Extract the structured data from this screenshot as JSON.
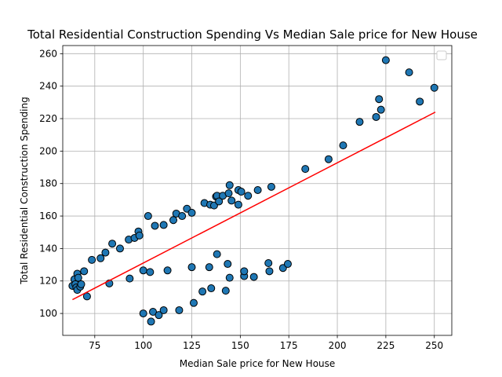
{
  "chart_data": {
    "type": "scatter",
    "title": "Total Residential Construction Spending Vs Median Sale price for New House",
    "xlabel": "Median Sale price for New House",
    "ylabel": "Total Residential Construction Spending",
    "xlim": [
      58.5,
      259
    ],
    "ylim": [
      86.5,
      265
    ],
    "xticks": [
      75,
      100,
      125,
      150,
      175,
      200,
      225,
      250
    ],
    "yticks": [
      100,
      120,
      140,
      160,
      180,
      200,
      220,
      240,
      260
    ],
    "grid": true,
    "legend": "top-right (empty)",
    "colors": {
      "points": "#1f77b4",
      "point_edge": "#000000",
      "fit_line": "#ff0000"
    },
    "points": [
      [
        63.5,
        117.0
      ],
      [
        64.5,
        121.0
      ],
      [
        65.0,
        118.0
      ],
      [
        65.5,
        116.0
      ],
      [
        66.0,
        114.5
      ],
      [
        66.0,
        124.5
      ],
      [
        66.5,
        122.0
      ],
      [
        67.5,
        116.5
      ],
      [
        68.0,
        118.0
      ],
      [
        69.5,
        126.0
      ],
      [
        71.0,
        110.5
      ],
      [
        73.5,
        133.0
      ],
      [
        78.0,
        134.0
      ],
      [
        80.5,
        137.5
      ],
      [
        82.5,
        118.5
      ],
      [
        84.0,
        143.0
      ],
      [
        88.0,
        140.0
      ],
      [
        92.5,
        145.5
      ],
      [
        93.0,
        121.5
      ],
      [
        95.5,
        146.5
      ],
      [
        97.5,
        150.5
      ],
      [
        98.0,
        148.0
      ],
      [
        100.0,
        126.5
      ],
      [
        100.0,
        100.0
      ],
      [
        102.5,
        160.0
      ],
      [
        103.5,
        125.5
      ],
      [
        104.0,
        95.0
      ],
      [
        105.0,
        101.0
      ],
      [
        106.0,
        154.0
      ],
      [
        108.0,
        99.0
      ],
      [
        110.5,
        102.0
      ],
      [
        110.5,
        154.5
      ],
      [
        112.5,
        126.5
      ],
      [
        115.5,
        157.5
      ],
      [
        117.0,
        161.5
      ],
      [
        118.5,
        102.0
      ],
      [
        120.0,
        160.0
      ],
      [
        122.5,
        164.5
      ],
      [
        125.0,
        162.0
      ],
      [
        125.0,
        128.5
      ],
      [
        126.0,
        106.5
      ],
      [
        130.5,
        113.5
      ],
      [
        131.5,
        168.0
      ],
      [
        134.0,
        128.5
      ],
      [
        134.5,
        167.0
      ],
      [
        135.0,
        115.5
      ],
      [
        136.5,
        166.5
      ],
      [
        137.5,
        172.0
      ],
      [
        138.0,
        136.5
      ],
      [
        138.0,
        172.5
      ],
      [
        139.0,
        169.0
      ],
      [
        141.0,
        172.5
      ],
      [
        142.5,
        114.0
      ],
      [
        143.5,
        130.5
      ],
      [
        144.0,
        174.0
      ],
      [
        144.5,
        179.0
      ],
      [
        144.5,
        122.0
      ],
      [
        145.5,
        169.5
      ],
      [
        149.0,
        176.0
      ],
      [
        149.0,
        167.0
      ],
      [
        150.5,
        175.0
      ],
      [
        152.0,
        123.0
      ],
      [
        152.0,
        126.0
      ],
      [
        154.0,
        172.5
      ],
      [
        157.0,
        122.5
      ],
      [
        159.0,
        176.0
      ],
      [
        164.5,
        131.0
      ],
      [
        165.0,
        126.0
      ],
      [
        166.0,
        178.0
      ],
      [
        172.0,
        128.0
      ],
      [
        174.5,
        130.5
      ],
      [
        183.5,
        189.0
      ],
      [
        195.5,
        195.0
      ],
      [
        203.0,
        203.5
      ],
      [
        211.5,
        218.0
      ],
      [
        220.0,
        221.0
      ],
      [
        221.5,
        232.0
      ],
      [
        222.5,
        225.5
      ],
      [
        225.0,
        256.0
      ],
      [
        237.0,
        248.5
      ],
      [
        242.5,
        230.5
      ],
      [
        250.0,
        239.0
      ]
    ],
    "fit_line": {
      "x": [
        63.5,
        250.5
      ],
      "y": [
        108.5,
        224.0
      ]
    }
  }
}
